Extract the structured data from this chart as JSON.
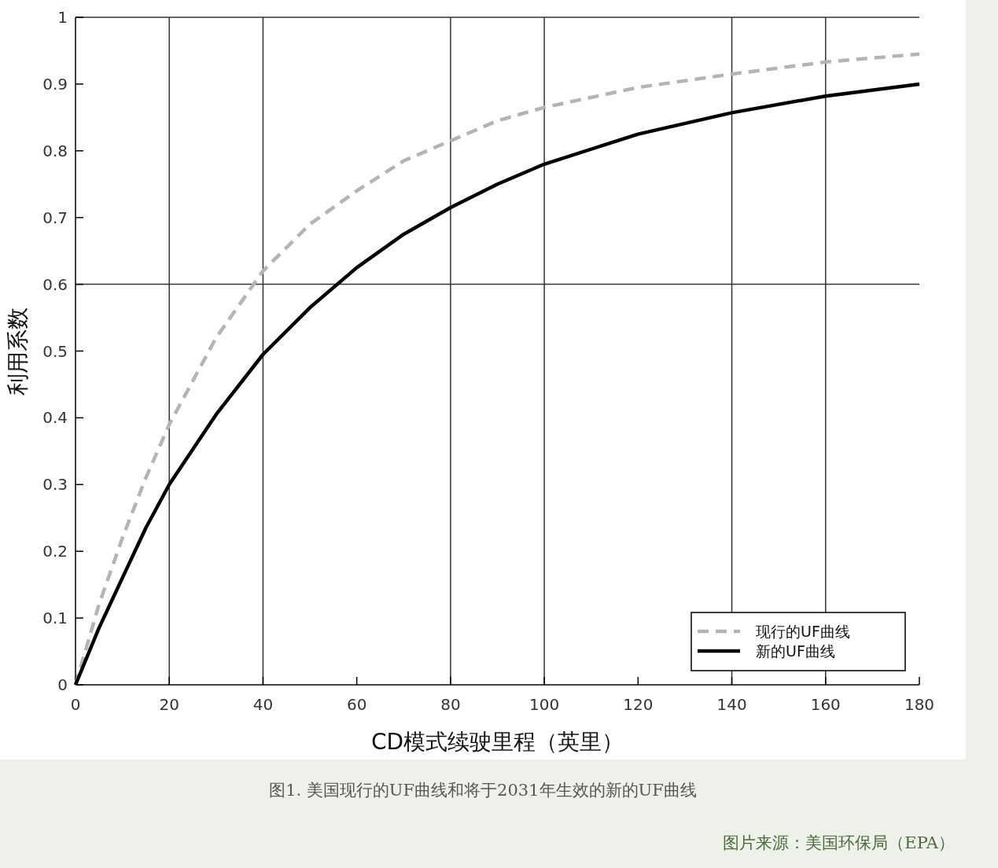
{
  "chart_data": {
    "type": "line",
    "xlabel": "CD模式续驶里程（英里）",
    "ylabel": "利用系数",
    "x": [
      0,
      5,
      10,
      15,
      20,
      30,
      40,
      50,
      60,
      70,
      80,
      90,
      100,
      120,
      140,
      160,
      180
    ],
    "series": [
      {
        "name": "现行的UF曲线",
        "color": "#b4b4b4",
        "line_style": "dashed",
        "values": [
          0,
          0.12,
          0.22,
          0.31,
          0.39,
          0.52,
          0.62,
          0.69,
          0.74,
          0.785,
          0.815,
          0.845,
          0.865,
          0.895,
          0.915,
          0.933,
          0.945
        ]
      },
      {
        "name": "新的UF曲线",
        "color": "#000000",
        "line_style": "solid",
        "values": [
          0,
          0.085,
          0.16,
          0.235,
          0.3,
          0.405,
          0.495,
          0.565,
          0.625,
          0.675,
          0.715,
          0.75,
          0.78,
          0.825,
          0.857,
          0.882,
          0.9
        ]
      }
    ],
    "xlim": [
      0,
      180
    ],
    "ylim": [
      0,
      1
    ],
    "xticks": [
      0,
      20,
      40,
      60,
      80,
      100,
      120,
      140,
      160,
      180
    ],
    "yticks": [
      0,
      0.1,
      0.2,
      0.3,
      0.4,
      0.5,
      0.6,
      0.7,
      0.8,
      0.9,
      1
    ],
    "grid": false,
    "ref_lines": [
      {
        "axis": "x",
        "value": 20,
        "color": "#333333"
      },
      {
        "axis": "x",
        "value": 40,
        "color": "#333333"
      },
      {
        "axis": "x",
        "value": 80,
        "color": "#333333"
      },
      {
        "axis": "x",
        "value": 100,
        "color": "#333333"
      },
      {
        "axis": "x",
        "value": 140,
        "color": "#333333"
      },
      {
        "axis": "x",
        "value": 160,
        "color": "#333333"
      },
      {
        "axis": "y",
        "value": 0.6,
        "color": "#333333"
      }
    ],
    "legend": "bottom right",
    "annotations": [
      "图1. 美国现行的UF曲线和将于2031年生效的新的UF曲线",
      "图片来源：美国环保局（EPA）"
    ]
  }
}
